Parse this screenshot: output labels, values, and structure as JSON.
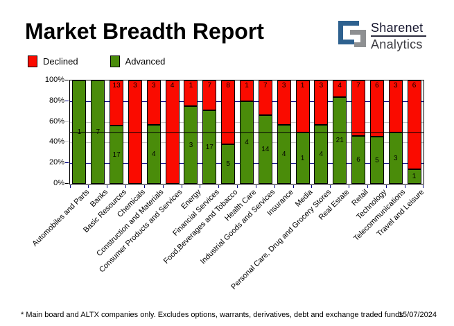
{
  "title": "Market Breadth Report",
  "logo": {
    "name": "Sharenet",
    "sub": "Analytics"
  },
  "legend": [
    {
      "label": "Declined",
      "key": "declined"
    },
    {
      "label": "Advanced",
      "key": "advanced"
    }
  ],
  "colors": {
    "declined": "#fa0b00",
    "advanced": "#4a8c0a",
    "grid_major": "#000080",
    "grid_minor": "#c0c0c0",
    "frame": "#000000",
    "logo_blue": "#2e618f",
    "logo_gray": "#8e9092"
  },
  "chart_data": {
    "type": "bar",
    "stacked": true,
    "normalized": "percent",
    "title": "Market Breadth Report",
    "categories": [
      "Automobiles and Parts",
      "Banks",
      "Basic Resources",
      "Chemicals",
      "Construction and Materials",
      "Consumer Products and Services",
      "Energy",
      "Financial Services",
      "Food,Beverages and Tobacco",
      "Health Care",
      "Industrial Goods and Services",
      "Insurance",
      "Media",
      "Personal Care, Drug and Grocery Stores",
      "Real Estate",
      "Retail",
      "Technology",
      "Telecommunications",
      "Travel and Leisure"
    ],
    "series": [
      {
        "name": "Declined",
        "color": "#fa0b00",
        "values": [
          0,
          0,
          13,
          3,
          3,
          4,
          1,
          7,
          8,
          1,
          7,
          3,
          1,
          3,
          4,
          7,
          6,
          3,
          6
        ]
      },
      {
        "name": "Advanced",
        "color": "#4a8c0a",
        "values": [
          1,
          7,
          17,
          0,
          4,
          0,
          3,
          17,
          5,
          4,
          14,
          4,
          1,
          4,
          21,
          6,
          5,
          3,
          1
        ]
      }
    ],
    "ylim": [
      0,
      100
    ],
    "yticks": [
      "0%",
      "20%",
      "40%",
      "60%",
      "80%",
      "100%"
    ],
    "reference_line_pct": 50,
    "grid": "horizontal",
    "legend_position": "top-left"
  },
  "footer": {
    "note": "* Main board and ALTX companies only. Excludes options, warrants, derivatives, debt and exchange traded funds",
    "date": "15/07/2024"
  }
}
